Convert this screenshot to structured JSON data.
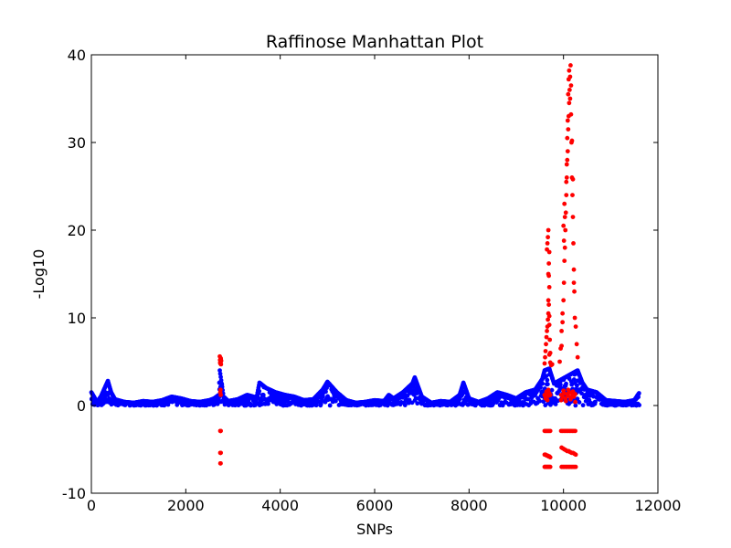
{
  "chart_data": {
    "type": "scatter",
    "title": "Raffinose Manhattan Plot",
    "xlabel": "SNPs",
    "ylabel": "-Log10",
    "xlim": [
      0,
      12000
    ],
    "ylim": [
      -10,
      40
    ],
    "xticks": [
      0,
      2000,
      4000,
      6000,
      8000,
      10000,
      12000
    ],
    "yticks": [
      -10,
      0,
      10,
      20,
      30,
      40
    ],
    "grid": false,
    "legend": "none",
    "colors": {
      "baseline": "#0000ff",
      "significant": "#ff0000"
    },
    "significance_threshold": 4.5,
    "baseline_profile": {
      "x": [
        0,
        120,
        200,
        300,
        350,
        420,
        500,
        700,
        900,
        1100,
        1300,
        1500,
        1700,
        1900,
        2100,
        2300,
        2500,
        2600,
        2700,
        2720,
        2760,
        2800,
        2900,
        3100,
        3300,
        3500,
        3560,
        3700,
        3900,
        4100,
        4300,
        4500,
        4700,
        4900,
        5000,
        5200,
        5400,
        5600,
        5800,
        6000,
        6200,
        6300,
        6400,
        6600,
        6800,
        6850,
        7000,
        7200,
        7400,
        7600,
        7800,
        7880,
        8000,
        8200,
        8400,
        8600,
        8800,
        9000,
        9200,
        9400,
        9550,
        9600,
        9700,
        9800,
        10300,
        10400,
        10500,
        10700,
        10900,
        11100,
        11300,
        11500,
        11600
      ],
      "y": [
        1.5,
        0.4,
        1.0,
        2.2,
        2.8,
        1.5,
        0.7,
        0.4,
        0.3,
        0.5,
        0.4,
        0.6,
        1.0,
        0.8,
        0.5,
        0.4,
        0.6,
        0.8,
        1.2,
        4.0,
        2.5,
        1.0,
        0.5,
        0.7,
        1.2,
        0.9,
        2.6,
        2.0,
        1.5,
        1.2,
        1.0,
        0.6,
        0.7,
        1.8,
        2.7,
        1.5,
        0.6,
        0.3,
        0.4,
        0.6,
        0.5,
        1.2,
        0.8,
        1.5,
        2.5,
        3.2,
        1.0,
        0.3,
        0.5,
        0.4,
        1.2,
        2.6,
        0.8,
        0.4,
        0.8,
        1.5,
        1.2,
        0.8,
        1.5,
        1.8,
        3.0,
        4.0,
        4.2,
        2.5,
        4.0,
        2.6,
        1.8,
        1.5,
        0.6,
        0.5,
        0.4,
        0.6,
        1.4
      ]
    },
    "series": [
      {
        "x": [
          2720,
          2725,
          2730,
          2735,
          2740,
          2745,
          2750,
          2728,
          2742
        ],
        "y": [
          5.6,
          5.2,
          4.8,
          5.0,
          5.4,
          4.7,
          5.1,
          4.9,
          5.3
        ]
      },
      {
        "x": [
          2730,
          2735,
          2740,
          2730,
          2735,
          2740,
          2730,
          2735,
          2740,
          2732,
          2738
        ],
        "y": [
          1.5,
          1.8,
          1.2,
          -2.9,
          -2.9,
          -2.9,
          -5.4,
          -5.4,
          -5.4,
          -6.6,
          -6.6
        ]
      },
      {
        "x": [
          9600,
          9610,
          9620,
          9630,
          9640,
          9650,
          9660,
          9670,
          9680,
          9690,
          9700,
          9710,
          9720,
          9680,
          9690,
          9700,
          9650,
          9660,
          9670,
          9680,
          9690,
          9700,
          9700,
          9720,
          9740,
          9760,
          9680,
          9700
        ],
        "y": [
          4.8,
          5.5,
          6.2,
          7.0,
          7.8,
          8.5,
          9.0,
          9.8,
          10.5,
          11.5,
          9.2,
          7.5,
          6.0,
          15.0,
          16.2,
          17.5,
          17.8,
          18.5,
          19.2,
          20.0,
          14.8,
          13.5,
          5.8,
          4.9,
          4.6,
          4.7,
          12.0,
          10.2
        ]
      },
      {
        "x": [
          9920,
          9940,
          9960,
          9980,
          10000,
          10010,
          10020,
          10030,
          10040,
          10050,
          10060,
          10070,
          10080,
          10090,
          10100,
          10110,
          10120,
          10130,
          10140,
          10150,
          10160,
          10170,
          10180,
          10190,
          10200,
          10210,
          10220,
          10230,
          10000,
          10010,
          10020,
          10030,
          10060,
          10070,
          10080,
          10090,
          10100,
          10110,
          10120,
          10140,
          10160,
          10180,
          10200,
          10220,
          10240,
          10260,
          10280,
          10300,
          9960,
          9980
        ],
        "y": [
          5.0,
          6.5,
          8.5,
          10.5,
          12.0,
          14.0,
          16.5,
          18.0,
          20.0,
          22.0,
          24.0,
          26.0,
          28.0,
          29.0,
          31.5,
          33.0,
          34.5,
          36.0,
          37.5,
          38.8,
          36.5,
          30.0,
          26.0,
          24.0,
          21.5,
          18.5,
          15.5,
          13.0,
          20.5,
          18.8,
          23.0,
          21.5,
          25.5,
          27.5,
          30.5,
          32.5,
          35.5,
          37.2,
          38.2,
          35.0,
          33.2,
          30.2,
          25.8,
          14.0,
          10.0,
          9.0,
          7.0,
          5.5,
          6.8,
          9.5
        ]
      },
      {
        "x": [
          9600,
          9620,
          9640,
          9660,
          9680,
          9700,
          9720,
          9600,
          9620,
          9640,
          9660,
          9680,
          9700,
          9720,
          9600,
          9620,
          9640,
          9660,
          9680,
          9700,
          9720,
          9600,
          9620,
          9640,
          9660,
          9680,
          9700,
          9720,
          9620,
          9640,
          9660,
          9680
        ],
        "y": [
          1.2,
          1.0,
          1.5,
          1.3,
          1.1,
          1.4,
          1.2,
          -2.9,
          -2.9,
          -2.9,
          -2.9,
          -2.9,
          -2.9,
          -2.9,
          -5.6,
          -5.6,
          -5.7,
          -5.7,
          -5.8,
          -5.8,
          -5.9,
          -7.0,
          -7.0,
          -7.0,
          -7.0,
          -7.0,
          -7.0,
          -7.0,
          0.8,
          1.6,
          0.6,
          1.8
        ]
      },
      {
        "x": [
          9950,
          9980,
          10010,
          10040,
          10070,
          10100,
          10130,
          10160,
          10190,
          10220,
          10250,
          9950,
          9980,
          10010,
          10040,
          10070,
          10100,
          10130,
          10160,
          10190,
          10220,
          10250,
          9960,
          9990,
          10020,
          10050,
          10080,
          10110,
          10140,
          10170,
          10200,
          10230,
          10260,
          9960,
          9990,
          10020,
          10050,
          10080,
          10110,
          10140,
          10170,
          10200,
          10230,
          10260,
          9950,
          10000,
          10050,
          10100,
          10150,
          10200,
          10250
        ],
        "y": [
          1.2,
          1.0,
          1.4,
          0.8,
          1.3,
          1.1,
          1.5,
          0.9,
          1.2,
          1.0,
          1.3,
          -2.9,
          -2.9,
          -2.9,
          -2.9,
          -2.9,
          -2.9,
          -2.9,
          -2.9,
          -2.9,
          -2.9,
          -2.9,
          -4.8,
          -4.9,
          -5.0,
          -5.1,
          -5.2,
          -5.2,
          -5.3,
          -5.4,
          -5.4,
          -5.5,
          -5.6,
          -7.0,
          -7.0,
          -7.0,
          -7.0,
          -7.0,
          -7.0,
          -7.0,
          -7.0,
          -7.0,
          -7.0,
          -7.0,
          0.6,
          1.7,
          0.5,
          1.8,
          0.7,
          1.6,
          0.4
        ]
      }
    ]
  }
}
